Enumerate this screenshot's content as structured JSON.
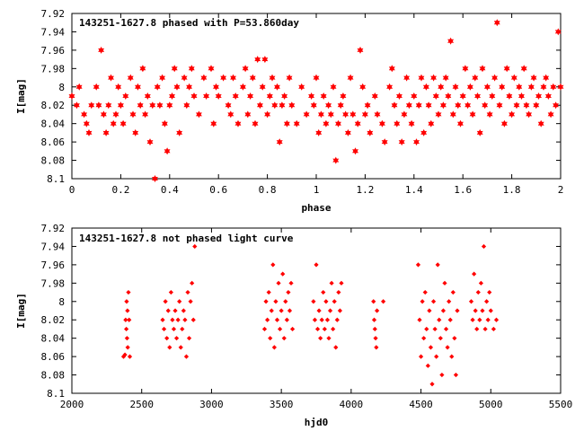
{
  "chart_data": [
    {
      "type": "scatter",
      "title": "143251-1627.8 phased with P=53.860day",
      "xlabel": "phase",
      "ylabel": "I[mag]",
      "xlim": [
        0,
        2
      ],
      "ylim": [
        8.1,
        7.92
      ],
      "y_inverted": true,
      "xticks": [
        "0",
        "0.2",
        "0.4",
        "0.6",
        "0.8",
        "1",
        "1.2",
        "1.4",
        "1.6",
        "1.8",
        "2"
      ],
      "yticks": [
        "7.92",
        "7.94",
        "7.96",
        "7.98",
        "8",
        "8.02",
        "8.04",
        "8.06",
        "8.08",
        "8.1"
      ],
      "grid": false,
      "color": "#ff0000",
      "marker": "star",
      "points": [
        [
          0.0,
          8.01
        ],
        [
          0.02,
          8.02
        ],
        [
          0.03,
          8.0
        ],
        [
          0.05,
          8.03
        ],
        [
          0.06,
          8.04
        ],
        [
          0.07,
          8.05
        ],
        [
          0.08,
          8.02
        ],
        [
          0.1,
          8.0
        ],
        [
          0.11,
          8.02
        ],
        [
          0.12,
          7.96
        ],
        [
          0.13,
          8.03
        ],
        [
          0.14,
          8.05
        ],
        [
          0.15,
          8.02
        ],
        [
          0.16,
          7.99
        ],
        [
          0.17,
          8.04
        ],
        [
          0.18,
          8.03
        ],
        [
          0.19,
          8.0
        ],
        [
          0.2,
          8.02
        ],
        [
          0.21,
          8.04
        ],
        [
          0.22,
          8.01
        ],
        [
          0.24,
          7.99
        ],
        [
          0.25,
          8.03
        ],
        [
          0.26,
          8.05
        ],
        [
          0.27,
          8.0
        ],
        [
          0.28,
          8.02
        ],
        [
          0.29,
          7.98
        ],
        [
          0.3,
          8.03
        ],
        [
          0.31,
          8.01
        ],
        [
          0.32,
          8.06
        ],
        [
          0.33,
          8.02
        ],
        [
          0.34,
          8.1
        ],
        [
          0.35,
          8.0
        ],
        [
          0.36,
          8.02
        ],
        [
          0.37,
          7.99
        ],
        [
          0.38,
          8.04
        ],
        [
          0.39,
          8.07
        ],
        [
          0.4,
          8.02
        ],
        [
          0.41,
          8.01
        ],
        [
          0.42,
          7.98
        ],
        [
          0.43,
          8.0
        ],
        [
          0.44,
          8.05
        ],
        [
          0.46,
          7.99
        ],
        [
          0.47,
          8.02
        ],
        [
          0.48,
          8.0
        ],
        [
          0.49,
          7.98
        ],
        [
          0.5,
          8.01
        ],
        [
          0.52,
          8.03
        ],
        [
          0.54,
          7.99
        ],
        [
          0.55,
          8.01
        ],
        [
          0.57,
          7.98
        ],
        [
          0.58,
          8.04
        ],
        [
          0.59,
          8.0
        ],
        [
          0.6,
          8.01
        ],
        [
          0.62,
          7.99
        ],
        [
          0.64,
          8.02
        ],
        [
          0.65,
          8.03
        ],
        [
          0.66,
          7.99
        ],
        [
          0.67,
          8.01
        ],
        [
          0.68,
          8.04
        ],
        [
          0.7,
          8.0
        ],
        [
          0.71,
          7.98
        ],
        [
          0.72,
          8.03
        ],
        [
          0.73,
          8.01
        ],
        [
          0.74,
          7.99
        ],
        [
          0.75,
          8.04
        ],
        [
          0.76,
          7.97
        ],
        [
          0.77,
          8.02
        ],
        [
          0.78,
          8.0
        ],
        [
          0.79,
          7.97
        ],
        [
          0.8,
          8.03
        ],
        [
          0.81,
          8.01
        ],
        [
          0.82,
          7.99
        ],
        [
          0.83,
          8.02
        ],
        [
          0.84,
          8.0
        ],
        [
          0.85,
          8.06
        ],
        [
          0.86,
          8.02
        ],
        [
          0.87,
          8.01
        ],
        [
          0.88,
          8.04
        ],
        [
          0.89,
          7.99
        ],
        [
          0.9,
          8.02
        ],
        [
          0.92,
          8.04
        ],
        [
          0.94,
          8.0
        ],
        [
          0.96,
          8.03
        ],
        [
          0.98,
          8.01
        ],
        [
          0.99,
          8.02
        ],
        [
          1.0,
          7.99
        ],
        [
          1.01,
          8.05
        ],
        [
          1.02,
          8.03
        ],
        [
          1.03,
          8.01
        ],
        [
          1.04,
          8.04
        ],
        [
          1.05,
          8.02
        ],
        [
          1.06,
          8.03
        ],
        [
          1.07,
          8.0
        ],
        [
          1.08,
          8.08
        ],
        [
          1.09,
          8.04
        ],
        [
          1.1,
          8.02
        ],
        [
          1.11,
          8.01
        ],
        [
          1.12,
          8.03
        ],
        [
          1.13,
          8.05
        ],
        [
          1.14,
          7.99
        ],
        [
          1.15,
          8.03
        ],
        [
          1.16,
          8.07
        ],
        [
          1.17,
          8.04
        ],
        [
          1.18,
          7.96
        ],
        [
          1.19,
          8.0
        ],
        [
          1.2,
          8.03
        ],
        [
          1.21,
          8.02
        ],
        [
          1.22,
          8.05
        ],
        [
          1.24,
          8.01
        ],
        [
          1.25,
          8.03
        ],
        [
          1.27,
          8.04
        ],
        [
          1.28,
          8.06
        ],
        [
          1.3,
          8.0
        ],
        [
          1.31,
          7.98
        ],
        [
          1.32,
          8.02
        ],
        [
          1.33,
          8.04
        ],
        [
          1.34,
          8.01
        ],
        [
          1.35,
          8.06
        ],
        [
          1.36,
          8.03
        ],
        [
          1.37,
          7.99
        ],
        [
          1.38,
          8.02
        ],
        [
          1.39,
          8.04
        ],
        [
          1.4,
          8.01
        ],
        [
          1.41,
          8.06
        ],
        [
          1.42,
          8.02
        ],
        [
          1.43,
          7.99
        ],
        [
          1.44,
          8.05
        ],
        [
          1.45,
          8.0
        ],
        [
          1.46,
          8.02
        ],
        [
          1.47,
          8.04
        ],
        [
          1.48,
          7.99
        ],
        [
          1.49,
          8.01
        ],
        [
          1.5,
          8.03
        ],
        [
          1.51,
          8.0
        ],
        [
          1.52,
          8.02
        ],
        [
          1.53,
          7.99
        ],
        [
          1.54,
          8.01
        ],
        [
          1.55,
          7.95
        ],
        [
          1.56,
          8.03
        ],
        [
          1.57,
          8.0
        ],
        [
          1.58,
          8.02
        ],
        [
          1.59,
          8.04
        ],
        [
          1.6,
          8.01
        ],
        [
          1.61,
          7.98
        ],
        [
          1.62,
          8.02
        ],
        [
          1.63,
          8.0
        ],
        [
          1.64,
          8.03
        ],
        [
          1.65,
          7.99
        ],
        [
          1.66,
          8.01
        ],
        [
          1.67,
          8.05
        ],
        [
          1.68,
          7.98
        ],
        [
          1.69,
          8.02
        ],
        [
          1.7,
          8.0
        ],
        [
          1.71,
          8.03
        ],
        [
          1.72,
          8.01
        ],
        [
          1.73,
          7.99
        ],
        [
          1.74,
          7.93
        ],
        [
          1.75,
          8.02
        ],
        [
          1.76,
          8.0
        ],
        [
          1.77,
          8.04
        ],
        [
          1.78,
          7.98
        ],
        [
          1.79,
          8.01
        ],
        [
          1.8,
          8.03
        ],
        [
          1.81,
          7.99
        ],
        [
          1.82,
          8.02
        ],
        [
          1.83,
          8.0
        ],
        [
          1.84,
          8.01
        ],
        [
          1.85,
          7.98
        ],
        [
          1.86,
          8.02
        ],
        [
          1.87,
          8.03
        ],
        [
          1.88,
          8.0
        ],
        [
          1.89,
          7.99
        ],
        [
          1.9,
          8.02
        ],
        [
          1.91,
          8.01
        ],
        [
          1.92,
          8.04
        ],
        [
          1.93,
          8.0
        ],
        [
          1.94,
          7.99
        ],
        [
          1.95,
          8.01
        ],
        [
          1.96,
          8.03
        ],
        [
          1.97,
          8.0
        ],
        [
          1.98,
          8.02
        ],
        [
          1.99,
          7.94
        ],
        [
          2.0,
          8.0
        ]
      ]
    },
    {
      "type": "scatter",
      "title": "143251-1627.8 not phased light curve",
      "xlabel": "hjd0",
      "ylabel": "I[mag]",
      "xlim": [
        2000,
        5500
      ],
      "ylim": [
        8.1,
        7.92
      ],
      "y_inverted": true,
      "xticks": [
        "2000",
        "2500",
        "3000",
        "3500",
        "4000",
        "4500",
        "5000",
        "5500"
      ],
      "yticks": [
        "7.92",
        "7.94",
        "7.96",
        "7.98",
        "8",
        "8.02",
        "8.04",
        "8.06",
        "8.08",
        "8.1"
      ],
      "grid": false,
      "color": "#ff0000",
      "marker": "diamond",
      "points": [
        [
          2370,
          8.06
        ],
        [
          2380,
          8.058
        ],
        [
          2385,
          8.02
        ],
        [
          2390,
          8.03
        ],
        [
          2392,
          8.0
        ],
        [
          2395,
          8.04
        ],
        [
          2398,
          8.01
        ],
        [
          2400,
          8.05
        ],
        [
          2405,
          7.99
        ],
        [
          2410,
          8.02
        ],
        [
          2415,
          8.06
        ],
        [
          2650,
          8.02
        ],
        [
          2660,
          8.03
        ],
        [
          2670,
          8.0
        ],
        [
          2680,
          8.04
        ],
        [
          2690,
          8.01
        ],
        [
          2700,
          8.05
        ],
        [
          2710,
          7.99
        ],
        [
          2720,
          8.02
        ],
        [
          2730,
          8.03
        ],
        [
          2740,
          8.01
        ],
        [
          2750,
          8.04
        ],
        [
          2760,
          8.02
        ],
        [
          2770,
          8.0
        ],
        [
          2780,
          8.05
        ],
        [
          2790,
          8.03
        ],
        [
          2800,
          8.01
        ],
        [
          2810,
          8.02
        ],
        [
          2820,
          8.06
        ],
        [
          2830,
          7.99
        ],
        [
          2840,
          8.04
        ],
        [
          2850,
          8.0
        ],
        [
          2860,
          7.98
        ],
        [
          2870,
          8.02
        ],
        [
          2880,
          7.94
        ],
        [
          3380,
          8.03
        ],
        [
          3390,
          8.0
        ],
        [
          3400,
          8.02
        ],
        [
          3410,
          7.99
        ],
        [
          3420,
          8.04
        ],
        [
          3430,
          8.01
        ],
        [
          3440,
          7.96
        ],
        [
          3450,
          8.05
        ],
        [
          3460,
          8.0
        ],
        [
          3470,
          8.02
        ],
        [
          3480,
          7.98
        ],
        [
          3490,
          8.03
        ],
        [
          3500,
          8.01
        ],
        [
          3510,
          7.97
        ],
        [
          3520,
          8.04
        ],
        [
          3530,
          8.0
        ],
        [
          3540,
          8.02
        ],
        [
          3550,
          7.99
        ],
        [
          3560,
          8.01
        ],
        [
          3570,
          7.98
        ],
        [
          3580,
          8.03
        ],
        [
          3730,
          8.0
        ],
        [
          3740,
          8.02
        ],
        [
          3750,
          7.96
        ],
        [
          3760,
          8.03
        ],
        [
          3770,
          8.01
        ],
        [
          3780,
          8.04
        ],
        [
          3790,
          8.02
        ],
        [
          3800,
          7.99
        ],
        [
          3810,
          8.03
        ],
        [
          3820,
          8.0
        ],
        [
          3830,
          8.02
        ],
        [
          3840,
          8.04
        ],
        [
          3850,
          8.01
        ],
        [
          3860,
          7.98
        ],
        [
          3870,
          8.03
        ],
        [
          3880,
          8.0
        ],
        [
          3890,
          8.05
        ],
        [
          3900,
          8.02
        ],
        [
          3910,
          7.99
        ],
        [
          3920,
          8.01
        ],
        [
          3930,
          7.98
        ],
        [
          4160,
          8.0
        ],
        [
          4165,
          8.02
        ],
        [
          4170,
          8.03
        ],
        [
          4175,
          8.04
        ],
        [
          4180,
          8.05
        ],
        [
          4185,
          8.01
        ],
        [
          4230,
          8.0
        ],
        [
          4480,
          7.96
        ],
        [
          4490,
          8.02
        ],
        [
          4500,
          8.06
        ],
        [
          4510,
          8.0
        ],
        [
          4520,
          8.04
        ],
        [
          4530,
          7.99
        ],
        [
          4540,
          8.03
        ],
        [
          4550,
          8.07
        ],
        [
          4560,
          8.01
        ],
        [
          4570,
          8.05
        ],
        [
          4580,
          8.09
        ],
        [
          4590,
          8.0
        ],
        [
          4600,
          8.03
        ],
        [
          4610,
          8.06
        ],
        [
          4620,
          7.96
        ],
        [
          4630,
          8.02
        ],
        [
          4640,
          8.04
        ],
        [
          4650,
          8.08
        ],
        [
          4660,
          8.01
        ],
        [
          4670,
          7.98
        ],
        [
          4680,
          8.03
        ],
        [
          4690,
          8.05
        ],
        [
          4700,
          8.0
        ],
        [
          4710,
          8.02
        ],
        [
          4720,
          8.06
        ],
        [
          4730,
          7.99
        ],
        [
          4740,
          8.04
        ],
        [
          4750,
          8.08
        ],
        [
          4760,
          8.01
        ],
        [
          4860,
          8.0
        ],
        [
          4870,
          8.02
        ],
        [
          4880,
          7.97
        ],
        [
          4890,
          8.01
        ],
        [
          4900,
          8.03
        ],
        [
          4910,
          7.99
        ],
        [
          4920,
          8.02
        ],
        [
          4930,
          7.98
        ],
        [
          4940,
          8.01
        ],
        [
          4950,
          7.94
        ],
        [
          4960,
          8.03
        ],
        [
          4970,
          8.0
        ],
        [
          4980,
          8.02
        ],
        [
          4990,
          7.99
        ],
        [
          5000,
          8.01
        ],
        [
          5020,
          8.03
        ],
        [
          5040,
          8.02
        ]
      ]
    }
  ]
}
